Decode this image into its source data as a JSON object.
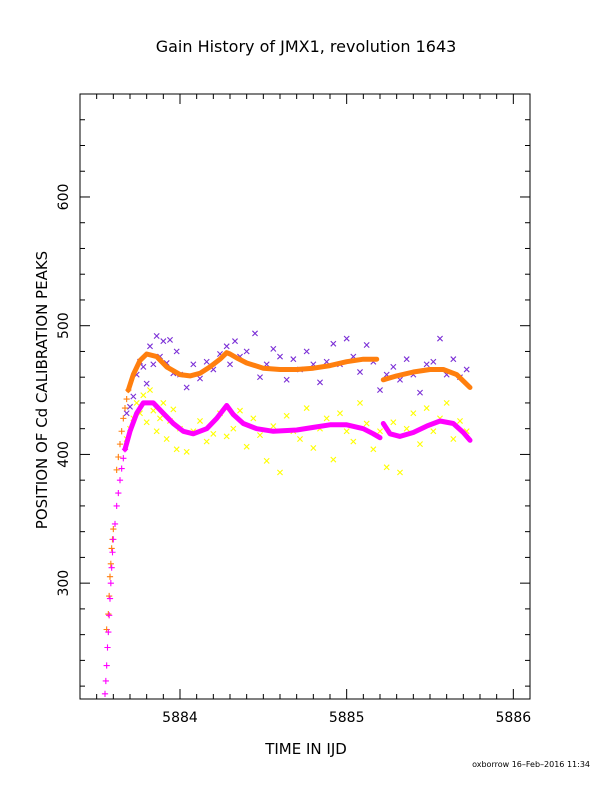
{
  "chart_data": {
    "type": "scatter",
    "title": "Gain History of JMX1, revolution 1643",
    "xlabel": "TIME IN IJD",
    "ylabel": "POSITION OF Cd CALIBRATION PEAKS",
    "xlim": [
      5883.4,
      5886.1
    ],
    "ylim": [
      210,
      680
    ],
    "x_ticks": [
      5884,
      5885,
      5886
    ],
    "y_ticks": [
      300,
      400,
      500,
      600
    ],
    "grid": false,
    "series": [
      {
        "color": "#7b2fd6",
        "marker": "x",
        "kind": "scatter",
        "points": [
          [
            5883.68,
            432
          ],
          [
            5883.7,
            437
          ],
          [
            5883.72,
            445
          ],
          [
            5883.74,
            462
          ],
          [
            5883.76,
            472
          ],
          [
            5883.78,
            468
          ],
          [
            5883.8,
            455
          ],
          [
            5883.82,
            484
          ],
          [
            5883.84,
            470
          ],
          [
            5883.86,
            492
          ],
          [
            5883.88,
            476
          ],
          [
            5883.9,
            488
          ],
          [
            5883.92,
            471
          ],
          [
            5883.94,
            489
          ],
          [
            5883.96,
            463
          ],
          [
            5883.98,
            480
          ],
          [
            5884.0,
            462
          ],
          [
            5884.04,
            452
          ],
          [
            5884.08,
            470
          ],
          [
            5884.12,
            459
          ],
          [
            5884.16,
            472
          ],
          [
            5884.2,
            466
          ],
          [
            5884.24,
            478
          ],
          [
            5884.28,
            484
          ],
          [
            5884.3,
            470
          ],
          [
            5884.33,
            488
          ],
          [
            5884.36,
            476
          ],
          [
            5884.4,
            480
          ],
          [
            5884.45,
            494
          ],
          [
            5884.48,
            460
          ],
          [
            5884.52,
            470
          ],
          [
            5884.56,
            482
          ],
          [
            5884.6,
            476
          ],
          [
            5884.64,
            458
          ],
          [
            5884.68,
            474
          ],
          [
            5884.72,
            466
          ],
          [
            5884.76,
            480
          ],
          [
            5884.8,
            470
          ],
          [
            5884.84,
            456
          ],
          [
            5884.88,
            472
          ],
          [
            5884.92,
            486
          ],
          [
            5884.96,
            470
          ],
          [
            5885.0,
            490
          ],
          [
            5885.04,
            476
          ],
          [
            5885.08,
            464
          ],
          [
            5885.12,
            485
          ],
          [
            5885.16,
            472
          ],
          [
            5885.2,
            450
          ],
          [
            5885.24,
            462
          ],
          [
            5885.28,
            468
          ],
          [
            5885.32,
            458
          ],
          [
            5885.36,
            474
          ],
          [
            5885.4,
            462
          ],
          [
            5885.44,
            448
          ],
          [
            5885.48,
            470
          ],
          [
            5885.52,
            472
          ],
          [
            5885.56,
            490
          ],
          [
            5885.6,
            462
          ],
          [
            5885.64,
            474
          ],
          [
            5885.68,
            460
          ],
          [
            5885.72,
            466
          ]
        ]
      },
      {
        "color": "#ffff00",
        "marker": "x",
        "kind": "scatter",
        "points": [
          [
            5883.68,
            412
          ],
          [
            5883.7,
            420
          ],
          [
            5883.72,
            428
          ],
          [
            5883.74,
            440
          ],
          [
            5883.76,
            432
          ],
          [
            5883.78,
            446
          ],
          [
            5883.8,
            425
          ],
          [
            5883.82,
            450
          ],
          [
            5883.84,
            434
          ],
          [
            5883.86,
            418
          ],
          [
            5883.88,
            428
          ],
          [
            5883.9,
            440
          ],
          [
            5883.92,
            412
          ],
          [
            5883.94,
            426
          ],
          [
            5883.96,
            435
          ],
          [
            5883.98,
            404
          ],
          [
            5884.0,
            420
          ],
          [
            5884.04,
            402
          ],
          [
            5884.08,
            418
          ],
          [
            5884.12,
            426
          ],
          [
            5884.16,
            410
          ],
          [
            5884.2,
            416
          ],
          [
            5884.24,
            432
          ],
          [
            5884.28,
            414
          ],
          [
            5884.32,
            420
          ],
          [
            5884.36,
            434
          ],
          [
            5884.4,
            406
          ],
          [
            5884.44,
            428
          ],
          [
            5884.48,
            415
          ],
          [
            5884.52,
            395
          ],
          [
            5884.56,
            422
          ],
          [
            5884.6,
            386
          ],
          [
            5884.64,
            430
          ],
          [
            5884.68,
            418
          ],
          [
            5884.72,
            412
          ],
          [
            5884.76,
            436
          ],
          [
            5884.8,
            405
          ],
          [
            5884.84,
            420
          ],
          [
            5884.88,
            428
          ],
          [
            5884.92,
            396
          ],
          [
            5884.96,
            432
          ],
          [
            5885.0,
            418
          ],
          [
            5885.04,
            410
          ],
          [
            5885.08,
            440
          ],
          [
            5885.12,
            424
          ],
          [
            5885.16,
            404
          ],
          [
            5885.2,
            418
          ],
          [
            5885.24,
            390
          ],
          [
            5885.28,
            425
          ],
          [
            5885.32,
            386
          ],
          [
            5885.36,
            420
          ],
          [
            5885.4,
            432
          ],
          [
            5885.44,
            408
          ],
          [
            5885.48,
            436
          ],
          [
            5885.52,
            418
          ],
          [
            5885.56,
            428
          ],
          [
            5885.6,
            440
          ],
          [
            5885.64,
            412
          ],
          [
            5885.68,
            426
          ],
          [
            5885.72,
            418
          ]
        ]
      },
      {
        "color": "#ff7f0e",
        "marker": "+",
        "kind": "scatter",
        "points": [
          [
            5883.56,
            264
          ],
          [
            5883.57,
            276
          ],
          [
            5883.575,
            290
          ],
          [
            5883.58,
            305
          ],
          [
            5883.585,
            315
          ],
          [
            5883.59,
            327
          ],
          [
            5883.595,
            334
          ],
          [
            5883.6,
            342
          ],
          [
            5883.62,
            388
          ],
          [
            5883.63,
            398
          ],
          [
            5883.64,
            408
          ],
          [
            5883.65,
            418
          ],
          [
            5883.66,
            428
          ],
          [
            5883.67,
            436
          ],
          [
            5883.68,
            443
          ],
          [
            5883.69,
            450
          ]
        ]
      },
      {
        "color": "#ff00ff",
        "marker": "+",
        "kind": "scatter",
        "points": [
          [
            5883.55,
            214
          ],
          [
            5883.555,
            224
          ],
          [
            5883.56,
            236
          ],
          [
            5883.565,
            250
          ],
          [
            5883.57,
            262
          ],
          [
            5883.575,
            275
          ],
          [
            5883.58,
            288
          ],
          [
            5883.585,
            300
          ],
          [
            5883.59,
            312
          ],
          [
            5883.595,
            324
          ],
          [
            5883.6,
            334
          ],
          [
            5883.61,
            346
          ],
          [
            5883.62,
            360
          ],
          [
            5883.63,
            370
          ],
          [
            5883.64,
            380
          ],
          [
            5883.65,
            389
          ],
          [
            5883.66,
            397
          ],
          [
            5883.67,
            404
          ]
        ]
      },
      {
        "color": "#ff7f0e",
        "kind": "curve",
        "segments": [
          [
            [
              5883.69,
              450
            ],
            [
              5883.72,
              462
            ],
            [
              5883.76,
              473
            ],
            [
              5883.8,
              478
            ],
            [
              5883.86,
              476
            ],
            [
              5883.92,
              468
            ],
            [
              5884.0,
              462
            ],
            [
              5884.06,
              461
            ],
            [
              5884.12,
              463
            ],
            [
              5884.18,
              468
            ],
            [
              5884.24,
              474
            ],
            [
              5884.28,
              479
            ],
            [
              5884.3,
              478
            ],
            [
              5884.34,
              475
            ],
            [
              5884.4,
              471
            ],
            [
              5884.5,
              467
            ],
            [
              5884.6,
              466
            ],
            [
              5884.7,
              466
            ],
            [
              5884.8,
              467
            ],
            [
              5884.9,
              469
            ],
            [
              5885.0,
              472
            ],
            [
              5885.1,
              474
            ],
            [
              5885.18,
              474
            ]
          ],
          [
            [
              5885.22,
              458
            ],
            [
              5885.3,
              461
            ],
            [
              5885.4,
              464
            ],
            [
              5885.5,
              466
            ],
            [
              5885.58,
              466
            ],
            [
              5885.66,
              462
            ],
            [
              5885.74,
              452
            ]
          ]
        ]
      },
      {
        "color": "#ff00ff",
        "kind": "curve",
        "segments": [
          [
            [
              5883.67,
              404
            ],
            [
              5883.7,
              418
            ],
            [
              5883.74,
              432
            ],
            [
              5883.78,
              440
            ],
            [
              5883.84,
              440
            ],
            [
              5883.9,
              432
            ],
            [
              5883.96,
              424
            ],
            [
              5884.02,
              418
            ],
            [
              5884.08,
              416
            ],
            [
              5884.16,
              420
            ],
            [
              5884.22,
              428
            ],
            [
              5884.28,
              438
            ],
            [
              5884.32,
              431
            ],
            [
              5884.38,
              424
            ],
            [
              5884.46,
              420
            ],
            [
              5884.56,
              418
            ],
            [
              5884.7,
              419
            ],
            [
              5884.8,
              421
            ],
            [
              5884.9,
              423
            ],
            [
              5885.0,
              423
            ],
            [
              5885.1,
              420
            ],
            [
              5885.16,
              416
            ],
            [
              5885.2,
              413
            ]
          ],
          [
            [
              5885.22,
              424
            ],
            [
              5885.26,
              416
            ],
            [
              5885.32,
              414
            ],
            [
              5885.4,
              417
            ],
            [
              5885.48,
              422
            ],
            [
              5885.56,
              426
            ],
            [
              5885.64,
              424
            ],
            [
              5885.7,
              417
            ],
            [
              5885.74,
              411
            ]
          ]
        ]
      }
    ]
  },
  "footer": "oxborrow 16–Feb–2016 11:34"
}
